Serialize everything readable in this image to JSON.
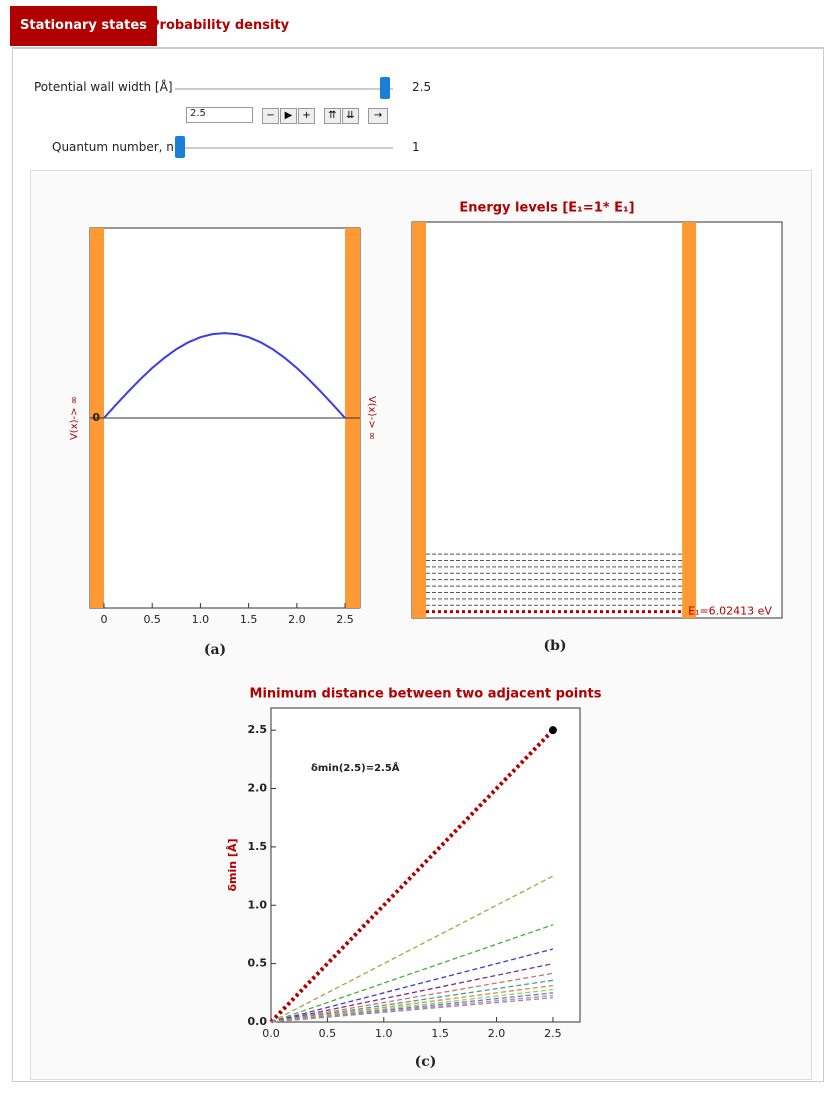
{
  "tabs": [
    "Stationary states",
    "Probability density"
  ],
  "controls": {
    "width_label": "Potential wall width [Å]",
    "width_value": "2.5",
    "width_input": "2.5",
    "n_label": "Quantum number, n",
    "n_value": "1"
  },
  "chart_data": [
    {
      "type": "line",
      "caption": "(a)",
      "wall_label": "V(x)-> ∞",
      "wall_color": "#ff9933",
      "x": [
        0,
        0.125,
        0.25,
        0.375,
        0.5,
        0.625,
        0.75,
        0.875,
        1,
        1.125,
        1.25,
        1.375,
        1.5,
        1.625,
        1.75,
        1.875,
        2,
        2.125,
        2.25,
        2.375,
        2.5
      ],
      "series": [
        {
          "color": "#3a3af0",
          "style": "solid",
          "values": [
            0,
            0.14,
            0.276,
            0.406,
            0.526,
            0.632,
            0.724,
            0.797,
            0.851,
            0.883,
            0.894,
            0.883,
            0.851,
            0.797,
            0.724,
            0.632,
            0.526,
            0.406,
            0.276,
            0.14,
            0
          ]
        }
      ],
      "xlim": [
        -0.145,
        2.655
      ],
      "ylim": [
        -2,
        2
      ],
      "xticks": [
        0,
        0.5,
        {
          "value": 1,
          "label": "1.0"
        },
        1.5,
        {
          "value": 2,
          "label": "2.0"
        },
        2.5
      ],
      "yticks": [
        0
      ],
      "baseline": true
    },
    {
      "type": "levels",
      "title": "Energy levels  [E₁=1* E₁]",
      "caption": "(b)",
      "annotation": "E₁=6.02413 eV",
      "levels": [
        1,
        2,
        3,
        4,
        5,
        6,
        7,
        8,
        9,
        10
      ],
      "ylim": [
        0,
        62
      ],
      "color": "#555555",
      "highlight_color": "#b00000",
      "wall_color": "#ff9933"
    },
    {
      "type": "line",
      "title": "Minimum distance between two adjacent points",
      "caption": "(c)",
      "ylabel": "δmin [Å]",
      "annotation": "δmin(2.5)=2.5Å",
      "x": [
        0,
        2.5
      ],
      "series": [
        {
          "color": "#b00000",
          "style": "dotted",
          "values": [
            0,
            2.5
          ]
        },
        {
          "color": "#b0a040",
          "style": "dashed",
          "values": [
            0,
            1.25
          ]
        },
        {
          "color": "#40b040",
          "style": "dashed",
          "values": [
            0,
            0.833
          ]
        },
        {
          "color": "#3c3cd0",
          "style": "dashed",
          "values": [
            0,
            0.625
          ]
        },
        {
          "color": "#803080",
          "style": "dashed",
          "values": [
            0,
            0.5
          ]
        },
        {
          "color": "#d07070",
          "style": "dashed",
          "values": [
            0,
            0.417
          ]
        },
        {
          "color": "#40a0a0",
          "style": "dashed",
          "values": [
            0,
            0.357
          ]
        },
        {
          "color": "#d09040",
          "style": "dashed",
          "values": [
            0,
            0.3125
          ]
        },
        {
          "color": "#90d060",
          "style": "dashed",
          "values": [
            0,
            0.278
          ]
        },
        {
          "color": "#6080c0",
          "style": "dashed",
          "values": [
            0,
            0.25
          ]
        },
        {
          "color": "#d080c0",
          "style": "dashed",
          "values": [
            0,
            0.227
          ]
        },
        {
          "color": "#909090",
          "style": "dashed",
          "values": [
            0,
            0.208
          ]
        }
      ],
      "points": {
        "x": [
          2.5
        ],
        "values": [
          2.5
        ],
        "color": "#000000"
      },
      "xlim": [
        0,
        2.74
      ],
      "ylim": [
        0,
        2.69
      ],
      "xticks": [
        {
          "value": 0,
          "label": "0.0"
        },
        0.5,
        {
          "value": 1,
          "label": "1.0"
        },
        1.5,
        {
          "value": 2,
          "label": "2.0"
        },
        2.5
      ],
      "yticks": [
        {
          "value": 0,
          "label": "0.0"
        },
        0.5,
        {
          "value": 1,
          "label": "1.0"
        },
        1.5,
        {
          "value": 2,
          "label": "2.0"
        },
        2.5
      ]
    }
  ]
}
